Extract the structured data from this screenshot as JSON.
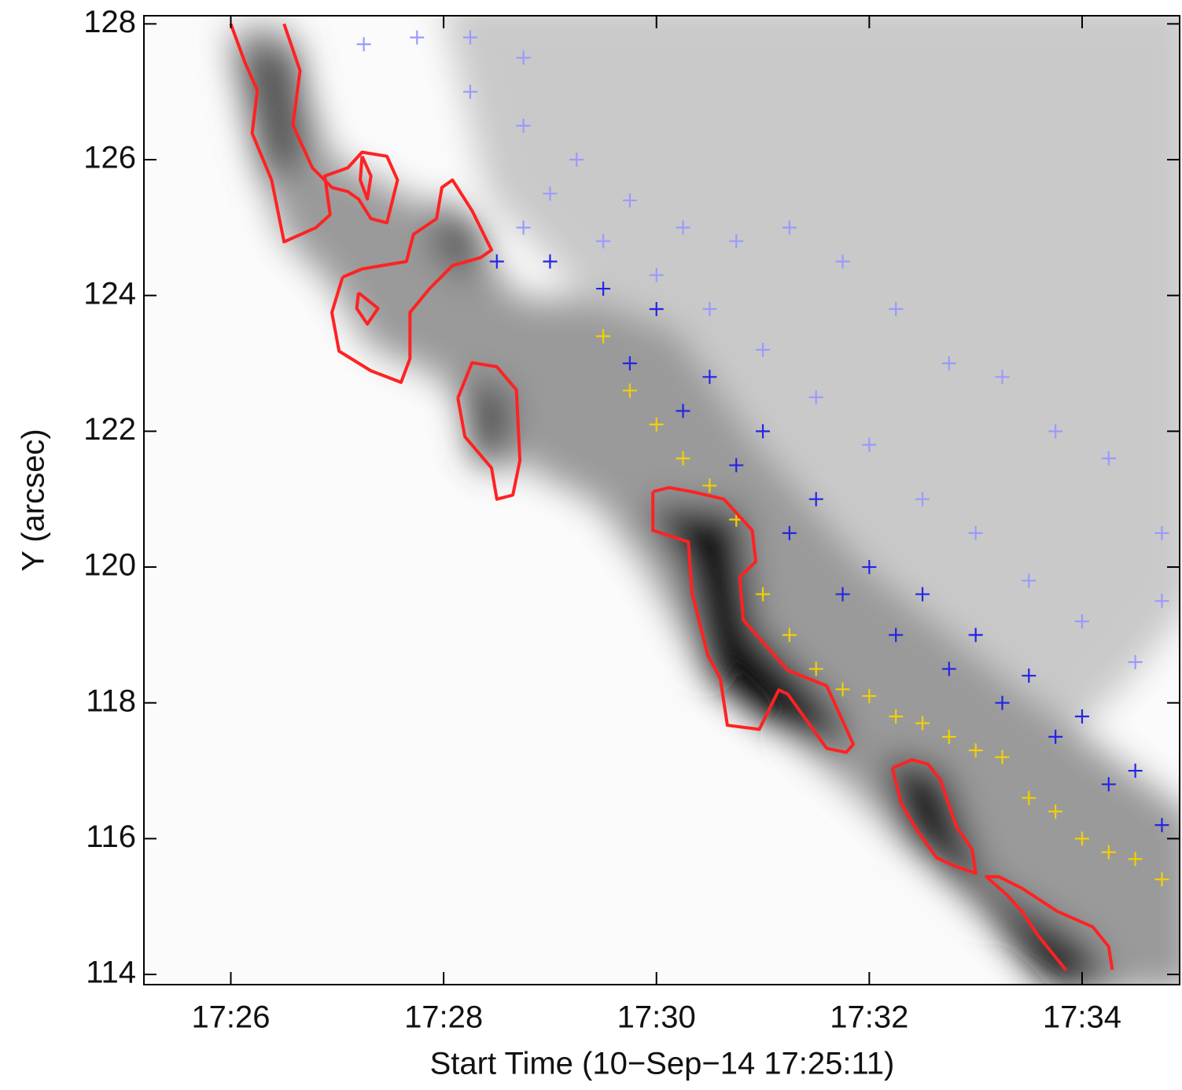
{
  "chart_data": {
    "type": "scatter",
    "xlabel": "Start Time (10−Sep−14 17:25:11)",
    "ylabel": "Y (arcsec)",
    "xlim": [
      "17:25:11",
      "17:34:55"
    ],
    "xticks": [
      {
        "value": "17:26:00",
        "label": "17:26"
      },
      {
        "value": "17:28:00",
        "label": "17:28"
      },
      {
        "value": "17:30:00",
        "label": "17:30"
      },
      {
        "value": "17:32:00",
        "label": "17:32"
      },
      {
        "value": "17:34:00",
        "label": "17:34"
      }
    ],
    "ylim": [
      113.85,
      128.12
    ],
    "yticks": [
      114,
      116,
      118,
      120,
      122,
      124,
      126,
      128
    ],
    "series": [
      {
        "type": "scatter",
        "color": "#9a9aff",
        "x": [
          "17:27:15",
          "17:27:45",
          "17:28:15",
          "17:28:45",
          "17:28:45",
          "17:29:15",
          "17:29:45",
          "17:30:15",
          "17:30:45",
          "17:31:15",
          "17:31:45",
          "17:32:15",
          "17:32:45",
          "17:33:15",
          "17:33:45",
          "17:34:15",
          "17:34:45",
          "17:34:45",
          "17:28:15",
          "17:28:45",
          "17:29:00",
          "17:29:30",
          "17:30:00",
          "17:30:30",
          "17:31:00",
          "17:31:30",
          "17:32:00",
          "17:32:30",
          "17:33:00",
          "17:33:30",
          "17:34:00",
          "17:34:30"
        ],
        "y": [
          127.7,
          127.8,
          127.8,
          127.5,
          126.5,
          126.0,
          125.4,
          125.0,
          124.8,
          125.0,
          124.5,
          123.8,
          123.0,
          122.8,
          122.0,
          121.6,
          120.5,
          119.5,
          127.0,
          125.0,
          125.5,
          124.8,
          124.3,
          123.8,
          123.2,
          122.5,
          121.8,
          121.0,
          120.5,
          119.8,
          119.2,
          118.6
        ]
      },
      {
        "type": "scatter",
        "color": "#2424e6",
        "x": [
          "17:28:30",
          "17:29:00",
          "17:29:30",
          "17:30:00",
          "17:30:30",
          "17:31:00",
          "17:31:30",
          "17:32:00",
          "17:32:30",
          "17:33:00",
          "17:33:30",
          "17:34:00",
          "17:34:30",
          "17:34:45",
          "17:29:45",
          "17:30:15",
          "17:30:45",
          "17:31:15",
          "17:31:45",
          "17:32:15",
          "17:32:45",
          "17:33:15",
          "17:33:45",
          "17:34:15"
        ],
        "y": [
          124.5,
          124.5,
          124.1,
          123.8,
          122.8,
          122.0,
          121.0,
          120.0,
          119.6,
          119.0,
          118.4,
          117.8,
          117.0,
          116.2,
          123.0,
          122.3,
          121.5,
          120.5,
          119.6,
          119.0,
          118.5,
          118.0,
          117.5,
          116.8
        ]
      },
      {
        "type": "scatter",
        "color": "#f2d000",
        "x": [
          "17:29:30",
          "17:29:45",
          "17:30:00",
          "17:30:15",
          "17:30:30",
          "17:30:45",
          "17:31:00",
          "17:31:15",
          "17:31:30",
          "17:31:45",
          "17:32:00",
          "17:32:15",
          "17:32:30",
          "17:32:45",
          "17:33:00",
          "17:33:15",
          "17:33:30",
          "17:33:45",
          "17:34:00",
          "17:34:15",
          "17:34:30",
          "17:34:45"
        ],
        "y": [
          123.4,
          122.6,
          122.1,
          121.6,
          121.2,
          120.7,
          119.6,
          119.0,
          118.5,
          118.2,
          118.1,
          117.8,
          117.7,
          117.5,
          117.3,
          117.2,
          116.6,
          116.4,
          116.0,
          115.8,
          115.7,
          115.4
        ]
      },
      {
        "type": "line",
        "color": "#ff2222",
        "x": [
          "17:26:00",
          "17:26:08",
          "17:26:15",
          "17:26:12",
          "17:26:23",
          "17:26:30",
          "17:26:48",
          "17:26:56",
          "17:26:53",
          "17:27:06",
          "17:27:14",
          "17:27:28",
          "17:27:34",
          "17:27:28",
          "17:27:19",
          "17:27:12",
          "17:27:06",
          "17:26:57",
          "17:26:46",
          "17:26:35",
          "17:26:39",
          "17:26:30"
        ],
        "y": [
          128.0,
          127.43,
          127.02,
          126.39,
          125.7,
          124.79,
          125.0,
          125.19,
          125.76,
          125.88,
          126.11,
          126.05,
          125.7,
          125.07,
          125.13,
          125.42,
          125.53,
          125.59,
          125.88,
          126.51,
          127.31,
          128.0
        ]
      },
      {
        "type": "line",
        "color": "#ff2222",
        "x": [
          "17:27:03",
          "17:26:57",
          "17:27:01",
          "17:27:19",
          "17:27:36",
          "17:27:41",
          "17:27:41",
          "17:27:52",
          "17:28:05",
          "17:28:21",
          "17:28:27",
          "17:28:16",
          "17:28:05",
          "17:27:59",
          "17:27:56",
          "17:27:43",
          "17:27:39",
          "17:27:14",
          "17:27:03"
        ],
        "y": [
          124.27,
          123.75,
          123.18,
          122.89,
          122.72,
          123.07,
          123.75,
          124.1,
          124.44,
          124.56,
          124.67,
          125.25,
          125.7,
          125.59,
          125.13,
          124.9,
          124.5,
          124.39,
          124.27
        ]
      },
      {
        "type": "line",
        "color": "#ff2222",
        "x": [
          "17:28:08",
          "17:28:12",
          "17:28:27",
          "17:28:30",
          "17:28:39",
          "17:28:43",
          "17:28:41",
          "17:28:30",
          "17:28:16",
          "17:28:08"
        ],
        "y": [
          122.49,
          121.92,
          121.46,
          121.0,
          121.06,
          121.57,
          122.61,
          122.95,
          123.01,
          122.49
        ]
      },
      {
        "type": "line",
        "color": "#ff2222",
        "x": [
          "17:29:58",
          "17:29:58",
          "17:30:18",
          "17:30:20",
          "17:30:29",
          "17:30:36",
          "17:30:40",
          "17:30:58",
          "17:31:09",
          "17:31:14",
          "17:31:36",
          "17:31:47",
          "17:31:51",
          "17:31:36",
          "17:31:14",
          "17:30:49",
          "17:30:47",
          "17:30:56",
          "17:30:54",
          "17:30:38",
          "17:30:20",
          "17:30:07",
          "17:29:58"
        ],
        "y": [
          121.11,
          120.54,
          120.37,
          119.62,
          118.7,
          118.36,
          117.67,
          117.61,
          118.19,
          118.13,
          117.33,
          117.27,
          117.39,
          118.25,
          118.48,
          119.22,
          119.85,
          120.08,
          120.54,
          121.0,
          121.11,
          121.17,
          121.11
        ]
      },
      {
        "type": "line",
        "color": "#ff2222",
        "x": [
          "17:32:13",
          "17:32:18",
          "17:32:27",
          "17:32:38",
          "17:32:47",
          "17:33:00",
          "17:32:58",
          "17:32:49",
          "17:32:40",
          "17:32:33",
          "17:32:24",
          "17:32:13"
        ],
        "y": [
          117.04,
          116.52,
          116.12,
          115.72,
          115.61,
          115.49,
          115.84,
          116.18,
          116.87,
          117.1,
          117.16,
          117.04
        ]
      },
      {
        "type": "line",
        "color": "#ff2222",
        "x": [
          "17:33:51",
          "17:33:35",
          "17:33:26",
          "17:33:18",
          "17:33:06",
          "17:33:13",
          "17:33:26",
          "17:33:46",
          "17:34:06",
          "17:34:15",
          "17:34:17"
        ],
        "y": [
          114.06,
          114.58,
          114.93,
          115.16,
          115.44,
          115.44,
          115.27,
          114.93,
          114.7,
          114.41,
          114.07
        ]
      },
      {
        "type": "line",
        "color": "#ff2222",
        "x": [
          "17:27:14",
          "17:27:19",
          "17:27:17",
          "17:27:13",
          "17:27:14"
        ],
        "y": [
          126.05,
          125.76,
          125.42,
          125.7,
          126.05
        ]
      },
      {
        "type": "line",
        "color": "#ff2222",
        "x": [
          "17:27:12",
          "17:27:23",
          "17:27:17",
          "17:27:11",
          "17:27:12"
        ],
        "y": [
          124.04,
          123.81,
          123.58,
          123.81,
          124.04
        ]
      }
    ]
  }
}
